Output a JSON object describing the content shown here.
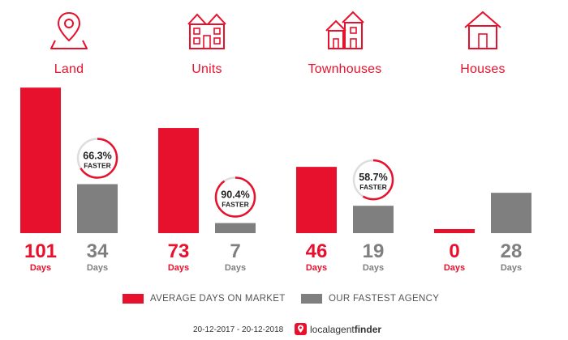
{
  "colors": {
    "accent": "#e8112d",
    "agency": "#7f7f7f",
    "faster_ring_track": "#dddddd"
  },
  "categories": [
    {
      "label": "Land",
      "icon": "map-pin-icon"
    },
    {
      "label": "Units",
      "icon": "apartment-building-icon"
    },
    {
      "label": "Townhouses",
      "icon": "townhouses-icon"
    },
    {
      "label": "Houses",
      "icon": "house-icon"
    }
  ],
  "chart_data": {
    "type": "bar",
    "categories": [
      "Land",
      "Units",
      "Townhouses",
      "Houses"
    ],
    "series": [
      {
        "name": "AVERAGE DAYS ON MARKET",
        "values": [
          101,
          73,
          46,
          0
        ],
        "color": "#e8112d"
      },
      {
        "name": "OUR FASTEST AGENCY",
        "values": [
          34,
          7,
          19,
          28
        ],
        "color": "#7f7f7f"
      }
    ],
    "value_unit": "Days",
    "faster_badges": [
      {
        "category": "Land",
        "percent": "66.3%",
        "label": "FASTER"
      },
      {
        "category": "Units",
        "percent": "90.4%",
        "label": "FASTER"
      },
      {
        "category": "Townhouses",
        "percent": "58.7%",
        "label": "FASTER"
      }
    ],
    "legend_position": "bottom",
    "grid": false
  },
  "legend": {
    "market_label": "AVERAGE DAYS ON MARKET",
    "agency_label": "OUR FASTEST AGENCY"
  },
  "footer": {
    "date_range": "20-12-2017 - 20-12-2018",
    "brand_prefix": "local",
    "brand_mid": "agent",
    "brand_suffix": "finder"
  }
}
